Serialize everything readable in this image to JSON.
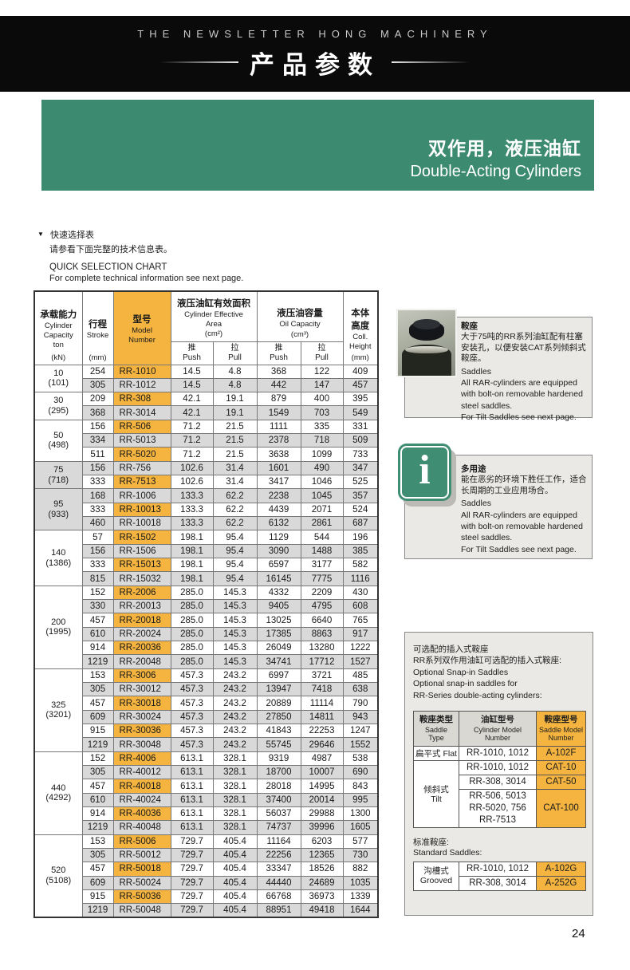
{
  "colors": {
    "banner_green": "#3c8b71",
    "model_orange": "#f4b43f",
    "row_gray": "#d9d9d9",
    "header_black": "#0a0a0a"
  },
  "masthead": {
    "line1": "THE NEWSLETTER HONG MACHINERY",
    "line2": "产品参数"
  },
  "banner": {
    "title_zh": "双作用，液压油缸",
    "title_en": "Double-Acting Cylinders"
  },
  "intro": {
    "marker": "▼",
    "zh1": "快速选择表",
    "zh2": "请参看下面完整的技术信息表。",
    "en1": "QUICK SELECTION CHART",
    "en2": "For complete technical information see next page."
  },
  "main_table": {
    "headers": {
      "capacity": {
        "zh": "承载能力",
        "en1": "Cylinder",
        "en2": "Capacity",
        "unit1": "ton",
        "unit2": "(kN)"
      },
      "stroke": {
        "zh": "行程",
        "unit": "(mm)"
      },
      "stroke_en": "Stroke",
      "model": {
        "zh": "型号",
        "en1": "Model",
        "en2": "Number"
      },
      "area": {
        "zh": "液压油缸有效面积",
        "en1": "Cylinder Effective",
        "en2": "Area",
        "unit": "(cm²)"
      },
      "oil": {
        "zh": "液压油容量",
        "en1": "Oil Capacity",
        "unit": "(cm³)"
      },
      "push_zh": "推",
      "push_en": "Push",
      "pull_zh": "拉",
      "pull_en": "Pull",
      "height": {
        "zh1": "本体",
        "zh2": "高度",
        "en1": "Coll.",
        "en2": "Height",
        "unit": "(mm)"
      }
    },
    "groups": [
      {
        "capacity": "10",
        "kn": "(101)",
        "rows": [
          [
            "254",
            "RR-1010",
            "14.5",
            "4.8",
            "368",
            "122",
            "409"
          ],
          [
            "305",
            "RR-1012",
            "14.5",
            "4.8",
            "442",
            "147",
            "457"
          ]
        ]
      },
      {
        "capacity": "30",
        "kn": "(295)",
        "rows": [
          [
            "209",
            "RR-308",
            "42.1",
            "19.1",
            "879",
            "400",
            "395"
          ],
          [
            "368",
            "RR-3014",
            "42.1",
            "19.1",
            "1549",
            "703",
            "549"
          ]
        ]
      },
      {
        "capacity": "50",
        "kn": "(498)",
        "rows": [
          [
            "156",
            "RR-506",
            "71.2",
            "21.5",
            "1111",
            "335",
            "331"
          ],
          [
            "334",
            "RR-5013",
            "71.2",
            "21.5",
            "2378",
            "718",
            "509"
          ],
          [
            "511",
            "RR-5020",
            "71.2",
            "21.5",
            "3638",
            "1099",
            "733"
          ]
        ]
      },
      {
        "capacity": "75",
        "kn": "(718)",
        "rows": [
          [
            "156",
            "RR-756",
            "102.6",
            "31.4",
            "1601",
            "490",
            "347"
          ],
          [
            "333",
            "RR-7513",
            "102.6",
            "31.4",
            "3417",
            "1046",
            "525"
          ]
        ]
      },
      {
        "capacity": "95",
        "kn": "(933)",
        "rows": [
          [
            "168",
            "RR-1006",
            "133.3",
            "62.2",
            "2238",
            "1045",
            "357"
          ],
          [
            "333",
            "RR-10013",
            "133.3",
            "62.2",
            "4439",
            "2071",
            "524"
          ],
          [
            "460",
            "RR-10018",
            "133.3",
            "62.2",
            "6132",
            "2861",
            "687"
          ]
        ]
      },
      {
        "capacity": "140",
        "kn": "(1386)",
        "rows": [
          [
            "57",
            "RR-1502",
            "198.1",
            "95.4",
            "1129",
            "544",
            "196"
          ],
          [
            "156",
            "RR-1506",
            "198.1",
            "95.4",
            "3090",
            "1488",
            "385"
          ],
          [
            "333",
            "RR-15013",
            "198.1",
            "95.4",
            "6597",
            "3177",
            "582"
          ],
          [
            "815",
            "RR-15032",
            "198.1",
            "95.4",
            "16145",
            "7775",
            "1116"
          ]
        ]
      },
      {
        "capacity": "200",
        "kn": "(1995)",
        "rows": [
          [
            "152",
            "RR-2006",
            "285.0",
            "145.3",
            "4332",
            "2209",
            "430"
          ],
          [
            "330",
            "RR-20013",
            "285.0",
            "145.3",
            "9405",
            "4795",
            "608"
          ],
          [
            "457",
            "RR-20018",
            "285.0",
            "145.3",
            "13025",
            "6640",
            "765"
          ],
          [
            "610",
            "RR-20024",
            "285.0",
            "145.3",
            "17385",
            "8863",
            "917"
          ],
          [
            "914",
            "RR-20036",
            "285.0",
            "145.3",
            "26049",
            "13280",
            "1222"
          ],
          [
            "1219",
            "RR-20048",
            "285.0",
            "145.3",
            "34741",
            "17712",
            "1527"
          ]
        ]
      },
      {
        "capacity": "325",
        "kn": "(3201)",
        "rows": [
          [
            "153",
            "RR-3006",
            "457.3",
            "243.2",
            "6997",
            "3721",
            "485"
          ],
          [
            "305",
            "RR-30012",
            "457.3",
            "243.2",
            "13947",
            "7418",
            "638"
          ],
          [
            "457",
            "RR-30018",
            "457.3",
            "243.2",
            "20889",
            "11114",
            "790"
          ],
          [
            "609",
            "RR-30024",
            "457.3",
            "243.2",
            "27850",
            "14811",
            "943"
          ],
          [
            "915",
            "RR-30036",
            "457.3",
            "243.2",
            "41843",
            "22253",
            "1247"
          ],
          [
            "1219",
            "RR-30048",
            "457.3",
            "243.2",
            "55745",
            "29646",
            "1552"
          ]
        ]
      },
      {
        "capacity": "440",
        "kn": "(4292)",
        "rows": [
          [
            "152",
            "RR-4006",
            "613.1",
            "328.1",
            "9319",
            "4987",
            "538"
          ],
          [
            "305",
            "RR-40012",
            "613.1",
            "328.1",
            "18700",
            "10007",
            "690"
          ],
          [
            "457",
            "RR-40018",
            "613.1",
            "328.1",
            "28018",
            "14995",
            "843"
          ],
          [
            "610",
            "RR-40024",
            "613.1",
            "328.1",
            "37400",
            "20014",
            "995"
          ],
          [
            "914",
            "RR-40036",
            "613.1",
            "328.1",
            "56037",
            "29988",
            "1300"
          ],
          [
            "1219",
            "RR-40048",
            "613.1",
            "328.1",
            "74737",
            "39996",
            "1605"
          ]
        ]
      },
      {
        "capacity": "520",
        "kn": "(5108)",
        "rows": [
          [
            "153",
            "RR-5006",
            "729.7",
            "405.4",
            "11164",
            "6203",
            "577"
          ],
          [
            "305",
            "RR-50012",
            "729.7",
            "405.4",
            "22256",
            "12365",
            "730"
          ],
          [
            "457",
            "RR-50018",
            "729.7",
            "405.4",
            "33347",
            "18526",
            "882"
          ],
          [
            "609",
            "RR-50024",
            "729.7",
            "405.4",
            "44440",
            "24689",
            "1035"
          ],
          [
            "915",
            "RR-50036",
            "729.7",
            "405.4",
            "66768",
            "36973",
            "1339"
          ],
          [
            "1219",
            "RR-50048",
            "729.7",
            "405.4",
            "88951",
            "49418",
            "1644"
          ]
        ]
      }
    ]
  },
  "saddles_box": {
    "title_zh": "鞍座",
    "zh_lines": [
      "大于75吨的RR系列油缸配有柱塞",
      "安装孔，以便安装CAT系列倾斜式",
      "鞍座。"
    ],
    "en_lines": [
      "Saddles",
      "All RAR-cylinders are equipped",
      "with bolt-on removable hardened",
      "steel saddles.",
      "For Tilt Saddles see next page."
    ]
  },
  "info_box": {
    "title_zh": "多用途",
    "zh_lines": [
      "能在恶劣的环境下胜任工作，适合",
      "长周期的工业应用场合。"
    ],
    "en_lines": [
      "Saddles",
      "All RAR-cylinders are equipped",
      "with bolt-on removable hardened",
      "steel saddles.",
      "For Tilt Saddles see next page."
    ]
  },
  "optional_box": {
    "lines": [
      "可选配的插入式鞍座",
      "RR系列双作用油缸可选配的插入式鞍座:",
      "Optional Snap-in Saddles",
      "Optional snap-in saddles for",
      "RR-Series double-acting cylinders:"
    ],
    "table": {
      "headers": [
        {
          "zh": "鞍座类型",
          "en1": "Saddle",
          "en2": "Type"
        },
        {
          "zh": "油缸型号",
          "en1": "Cylinder Model",
          "en2": "Number"
        },
        {
          "zh": "鞍座型号",
          "en1": "Saddle Model",
          "en2": "Number"
        }
      ],
      "groups": [
        {
          "type_zh": "扁平式",
          "type_en": "Flat",
          "inline": true,
          "entries": [
            {
              "models": [
                "RR-1010, 1012"
              ],
              "saddle": "A-102F"
            }
          ]
        },
        {
          "type_zh": "倾斜式",
          "type_en": "Tilt",
          "inline": false,
          "entries": [
            {
              "models": [
                "RR-1010, 1012"
              ],
              "saddle": "CAT-10"
            },
            {
              "models": [
                "RR-308, 3014"
              ],
              "saddle": "CAT-50"
            },
            {
              "models": [
                "RR-506, 5013",
                "RR-5020, 756",
                "RR-7513"
              ],
              "saddle": "CAT-100"
            }
          ]
        }
      ]
    },
    "standard_title_zh": "标准鞍座:",
    "standard_title_en": "Standard Saddles:",
    "standard_table": {
      "groups": [
        {
          "type_zh": "沟槽式",
          "type_en": "Grooved",
          "inline": false,
          "entries": [
            {
              "models": [
                "RR-1010, 1012"
              ],
              "saddle": "A-102G"
            },
            {
              "models": [
                "RR-308, 3014"
              ],
              "saddle": "A-252G"
            }
          ]
        }
      ]
    }
  },
  "page": {
    "number": "24"
  }
}
